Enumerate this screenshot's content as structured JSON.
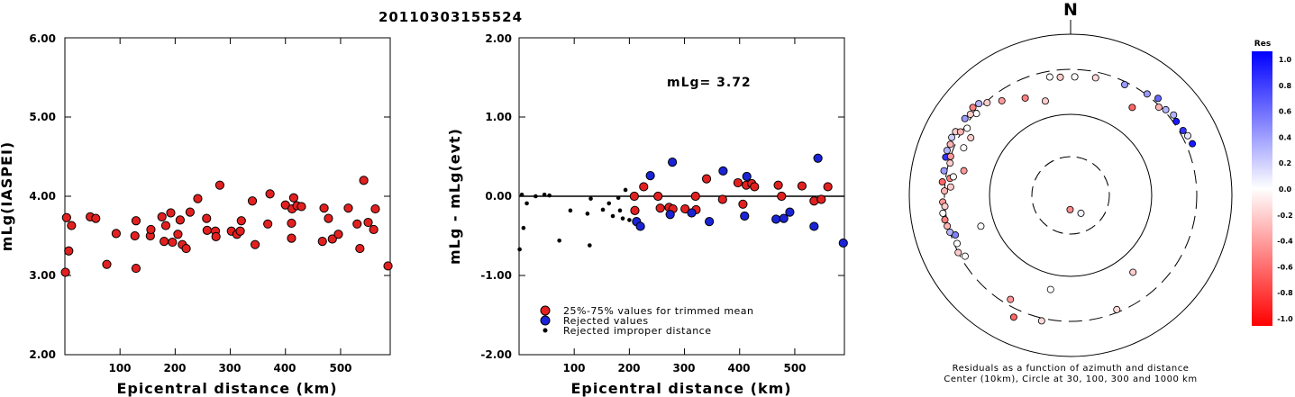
{
  "title": "20110303155524",
  "colors": {
    "trimmed": "#e32020",
    "rejected": "#1a24d6",
    "improper": "#000000"
  },
  "chart_data": [
    {
      "type": "scatter",
      "xlabel": "Epicentral distance (km)",
      "ylabel": "mLg(IASPEI)",
      "xlim": [
        0,
        590
      ],
      "ylim": [
        2.0,
        6.0
      ],
      "xticks": [
        "100",
        "200",
        "300",
        "400",
        "500"
      ],
      "yticks": [
        "2.00",
        "3.00",
        "4.00",
        "5.00",
        "6.00"
      ],
      "series": [
        {
          "marker": "red-circle",
          "points": [
            [
              1,
              3.04
            ],
            [
              3,
              3.73
            ],
            [
              7,
              3.31
            ],
            [
              12,
              3.63
            ],
            [
              46,
              3.74
            ],
            [
              56,
              3.72
            ],
            [
              76,
              3.14
            ],
            [
              93,
              3.53
            ],
            [
              127,
              3.5
            ],
            [
              129,
              3.09
            ],
            [
              129,
              3.69
            ],
            [
              155,
              3.5
            ],
            [
              156,
              3.58
            ],
            [
              176,
              3.74
            ],
            [
              180,
              3.43
            ],
            [
              183,
              3.63
            ],
            [
              192,
              3.79
            ],
            [
              195,
              3.42
            ],
            [
              205,
              3.52
            ],
            [
              209,
              3.7
            ],
            [
              213,
              3.39
            ],
            [
              220,
              3.34
            ],
            [
              227,
              3.8
            ],
            [
              241,
              3.97
            ],
            [
              257,
              3.72
            ],
            [
              258,
              3.57
            ],
            [
              273,
              3.56
            ],
            [
              274,
              3.49
            ],
            [
              281,
              4.14
            ],
            [
              302,
              3.56
            ],
            [
              312,
              3.52
            ],
            [
              318,
              3.56
            ],
            [
              320,
              3.69
            ],
            [
              340,
              3.94
            ],
            [
              345,
              3.39
            ],
            [
              368,
              3.65
            ],
            [
              372,
              4.03
            ],
            [
              400,
              3.89
            ],
            [
              411,
              3.66
            ],
            [
              411,
              3.47
            ],
            [
              412,
              3.84
            ],
            [
              415,
              3.98
            ],
            [
              421,
              3.88
            ],
            [
              429,
              3.87
            ],
            [
              467,
              3.43
            ],
            [
              470,
              3.85
            ],
            [
              478,
              3.72
            ],
            [
              485,
              3.46
            ],
            [
              496,
              3.52
            ],
            [
              514,
              3.85
            ],
            [
              530,
              3.65
            ],
            [
              535,
              3.34
            ],
            [
              542,
              4.2
            ],
            [
              550,
              3.67
            ],
            [
              560,
              3.58
            ],
            [
              563,
              3.84
            ],
            [
              586,
              3.12
            ]
          ]
        }
      ]
    },
    {
      "type": "scatter",
      "xlabel": "Epicentral distance (km)",
      "ylabel": "mLg - mLg(evt)",
      "xlim": [
        0,
        590
      ],
      "ylim": [
        -2.0,
        2.0
      ],
      "xticks": [
        "100",
        "200",
        "300",
        "400",
        "500"
      ],
      "yticks": [
        "-2.00",
        "-1.00",
        "0.00",
        "1.00",
        "2.00"
      ],
      "annotation": "mLg= 3.72",
      "reference_line": 0.0,
      "legend": [
        "25%-75% values for trimmed mean",
        "Rejected values",
        "Rejected improper distance"
      ],
      "series": [
        {
          "name": "25%-75% values for trimmed mean",
          "marker": "red-circle",
          "points": [
            [
              209,
              0.0
            ],
            [
              210,
              -0.18
            ],
            [
              226,
              0.12
            ],
            [
              252,
              0.0
            ],
            [
              256,
              -0.15
            ],
            [
              272,
              -0.14
            ],
            [
              279,
              -0.16
            ],
            [
              301,
              -0.16
            ],
            [
              320,
              0.0
            ],
            [
              321,
              -0.17
            ],
            [
              340,
              0.22
            ],
            [
              369,
              -0.04
            ],
            [
              397,
              0.17
            ],
            [
              406,
              -0.1
            ],
            [
              412,
              0.14
            ],
            [
              422,
              0.16
            ],
            [
              427,
              0.12
            ],
            [
              470,
              0.14
            ],
            [
              476,
              0.0
            ],
            [
              513,
              0.13
            ],
            [
              535,
              -0.06
            ],
            [
              548,
              -0.04
            ],
            [
              560,
              0.12
            ]
          ]
        },
        {
          "name": "Rejected values",
          "marker": "blue-circle",
          "points": [
            [
              213,
              -0.32
            ],
            [
              220,
              -0.38
            ],
            [
              238,
              0.26
            ],
            [
              274,
              -0.23
            ],
            [
              278,
              0.43
            ],
            [
              313,
              -0.21
            ],
            [
              345,
              -0.32
            ],
            [
              370,
              0.32
            ],
            [
              409,
              -0.25
            ],
            [
              413,
              0.25
            ],
            [
              466,
              -0.29
            ],
            [
              480,
              -0.28
            ],
            [
              491,
              -0.2
            ],
            [
              535,
              -0.38
            ],
            [
              542,
              0.48
            ],
            [
              588,
              -0.59
            ]
          ]
        },
        {
          "name": "Rejected improper distance",
          "marker": "black-dot",
          "points": [
            [
              1,
              -0.67
            ],
            [
              5,
              0.02
            ],
            [
              8,
              -0.4
            ],
            [
              14,
              -0.09
            ],
            [
              30,
              0.0
            ],
            [
              46,
              0.02
            ],
            [
              55,
              0.01
            ],
            [
              73,
              -0.56
            ],
            [
              93,
              -0.18
            ],
            [
              124,
              -0.22
            ],
            [
              128,
              -0.62
            ],
            [
              130,
              -0.03
            ],
            [
              152,
              -0.17
            ],
            [
              163,
              -0.09
            ],
            [
              170,
              -0.25
            ],
            [
              180,
              -0.02
            ],
            [
              183,
              -0.18
            ],
            [
              188,
              -0.28
            ],
            [
              193,
              0.08
            ],
            [
              200,
              -0.3
            ]
          ]
        }
      ]
    },
    {
      "type": "scatter",
      "subtype": "polar",
      "north_label": "N",
      "caption": [
        "Residuals as a function of azimuth and distance",
        "Center (10km), Circle at 30, 100, 300 and 1000 km"
      ],
      "ring_distances_km": [
        30,
        100,
        300,
        1000
      ],
      "colorbar": {
        "title": "Res",
        "range": [
          -1.0,
          1.0
        ],
        "tick_labels": [
          "1.0",
          "0.8",
          "0.6",
          "0.4",
          "0.2",
          "0.0",
          "-0.2",
          "-0.4",
          "-0.6",
          "-0.8",
          "-1.0"
        ]
      },
      "points": [
        {
          "az": 182,
          "dist": 15,
          "res": -0.45
        },
        {
          "az": 150,
          "dist": 18,
          "res": 0.05
        },
        {
          "az": 251,
          "dist": 140,
          "res": 0.0
        },
        {
          "az": 141,
          "dist": 155,
          "res": -0.2
        },
        {
          "az": 35,
          "dist": 190,
          "res": -0.6
        },
        {
          "az": 192,
          "dist": 145,
          "res": 0.0
        },
        {
          "az": 158,
          "dist": 280,
          "res": -0.15
        },
        {
          "az": 210,
          "dist": 260,
          "res": -0.4
        },
        {
          "az": 205,
          "dist": 400,
          "res": -0.6
        },
        {
          "az": 193,
          "dist": 330,
          "res": -0.15
        },
        {
          "az": 345,
          "dist": 150,
          "res": -0.2
        },
        {
          "az": 335,
          "dist": 190,
          "res": -0.5
        },
        {
          "az": 355,
          "dist": 250,
          "res": -0.2
        },
        {
          "az": 2,
          "dist": 250,
          "res": 0.0
        },
        {
          "az": 350,
          "dist": 260,
          "res": 0.0
        },
        {
          "az": 12,
          "dist": 260,
          "res": -0.15
        },
        {
          "az": 324,
          "dist": 240,
          "res": -0.4
        },
        {
          "az": 318,
          "dist": 290,
          "res": -0.2
        },
        {
          "az": 311,
          "dist": 290,
          "res": 0.0
        },
        {
          "az": 303,
          "dist": 280,
          "res": 0.0
        },
        {
          "az": 300,
          "dist": 230,
          "res": -0.2
        },
        {
          "az": 294,
          "dist": 240,
          "res": 0.0
        },
        {
          "az": 283,
          "dist": 200,
          "res": -0.4
        },
        {
          "az": 278,
          "dist": 270,
          "res": -0.5
        },
        {
          "az": 287,
          "dist": 350,
          "res": 0.8
        },
        {
          "az": 290,
          "dist": 360,
          "res": 0.3
        },
        {
          "az": 293,
          "dist": 350,
          "res": -0.3
        },
        {
          "az": 296,
          "dist": 370,
          "res": 0.2
        },
        {
          "az": 299,
          "dist": 360,
          "res": -0.2
        },
        {
          "az": 306,
          "dist": 350,
          "res": 0.4
        },
        {
          "az": 309,
          "dist": 330,
          "res": -0.2
        },
        {
          "az": 312,
          "dist": 360,
          "res": -0.5
        },
        {
          "az": 315,
          "dist": 340,
          "res": 0.3
        },
        {
          "az": 300,
          "dist": 310,
          "res": -0.3
        },
        {
          "az": 285,
          "dist": 290,
          "res": -0.2
        },
        {
          "az": 281,
          "dist": 330,
          "res": 0.4
        },
        {
          "az": 288,
          "dist": 300,
          "res": -0.4
        },
        {
          "az": 276,
          "dist": 330,
          "res": -0.6
        },
        {
          "az": 272,
          "dist": 300,
          "res": -0.3
        },
        {
          "az": 267,
          "dist": 320,
          "res": -0.4
        },
        {
          "az": 265,
          "dist": 300,
          "res": -0.2
        },
        {
          "az": 262,
          "dist": 330,
          "res": 0.0
        },
        {
          "az": 259,
          "dist": 320,
          "res": -0.5
        },
        {
          "az": 256,
          "dist": 310,
          "res": -0.3
        },
        {
          "az": 253,
          "dist": 300,
          "res": 0.3
        },
        {
          "az": 251,
          "dist": 270,
          "res": 0.5
        },
        {
          "az": 247,
          "dist": 280,
          "res": 0.0
        },
        {
          "az": 243,
          "dist": 300,
          "res": -0.2
        },
        {
          "az": 240,
          "dist": 270,
          "res": 0.0
        },
        {
          "az": 274,
          "dist": 260,
          "res": -0.2
        },
        {
          "az": 279,
          "dist": 250,
          "res": 0.0
        },
        {
          "az": 26,
          "dist": 280,
          "res": 0.4
        },
        {
          "az": 37,
          "dist": 310,
          "res": 0.4
        },
        {
          "az": 42,
          "dist": 350,
          "res": 0.6
        },
        {
          "az": 48,
          "dist": 320,
          "res": 0.3
        },
        {
          "az": 55,
          "dist": 330,
          "res": 0.9
        },
        {
          "az": 60,
          "dist": 340,
          "res": 0.8
        },
        {
          "az": 63,
          "dist": 360,
          "res": 0.1
        },
        {
          "az": 67,
          "dist": 370,
          "res": 0.9
        },
        {
          "az": 52,
          "dist": 350,
          "res": 0.3
        },
        {
          "az": 45,
          "dist": 290,
          "res": -0.3
        }
      ]
    }
  ]
}
